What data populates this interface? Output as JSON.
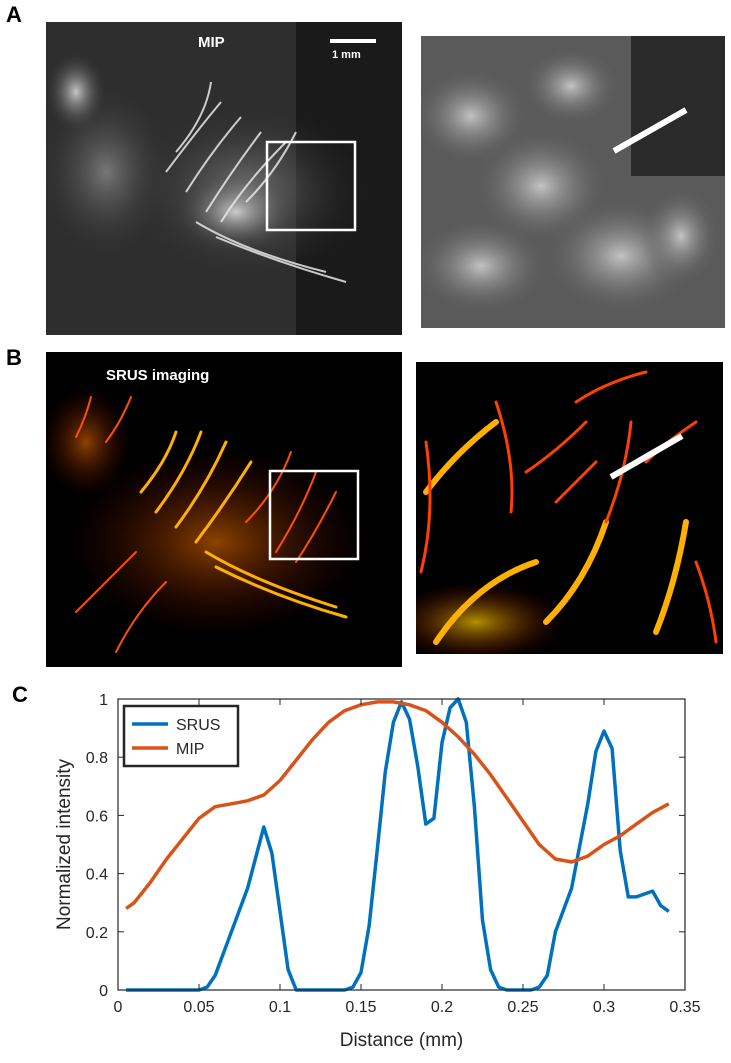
{
  "panels": {
    "a": {
      "letter": "A",
      "label": "MIP",
      "scale_bar": "1 mm"
    },
    "b": {
      "letter": "B",
      "label": "SRUS imaging"
    },
    "c": {
      "letter": "C"
    }
  },
  "chart_data": {
    "type": "line",
    "xlabel": "Distance (mm)",
    "ylabel": "Normalized intensity",
    "xlim": [
      0,
      0.35
    ],
    "ylim": [
      0,
      1
    ],
    "xticks": [
      "0",
      "0.05",
      "0.1",
      "0.15",
      "0.2",
      "0.25",
      "0.3",
      "0.35"
    ],
    "yticks": [
      "0",
      "0.2",
      "0.4",
      "0.6",
      "0.8",
      "1"
    ],
    "legend_position": "top-left",
    "series": [
      {
        "name": "SRUS",
        "color": "#0072BD",
        "x": [
          0.005,
          0.05,
          0.055,
          0.06,
          0.07,
          0.08,
          0.09,
          0.095,
          0.1,
          0.105,
          0.11,
          0.115,
          0.13,
          0.14,
          0.145,
          0.15,
          0.155,
          0.16,
          0.165,
          0.17,
          0.175,
          0.18,
          0.185,
          0.19,
          0.195,
          0.2,
          0.205,
          0.21,
          0.215,
          0.22,
          0.225,
          0.23,
          0.235,
          0.24,
          0.245,
          0.25,
          0.255,
          0.26,
          0.265,
          0.27,
          0.28,
          0.29,
          0.295,
          0.3,
          0.305,
          0.31,
          0.315,
          0.32,
          0.325,
          0.33,
          0.335,
          0.34
        ],
        "y": [
          0,
          0,
          0.01,
          0.05,
          0.2,
          0.35,
          0.56,
          0.47,
          0.27,
          0.07,
          0,
          0,
          0,
          0,
          0.01,
          0.06,
          0.22,
          0.48,
          0.75,
          0.92,
          0.99,
          0.93,
          0.77,
          0.57,
          0.59,
          0.85,
          0.97,
          1.0,
          0.92,
          0.63,
          0.24,
          0.07,
          0.01,
          0,
          0,
          0,
          0,
          0.01,
          0.05,
          0.2,
          0.35,
          0.64,
          0.82,
          0.89,
          0.83,
          0.48,
          0.32,
          0.32,
          0.33,
          0.34,
          0.29,
          0.27
        ]
      },
      {
        "name": "MIP",
        "color": "#D95319",
        "x": [
          0.005,
          0.01,
          0.02,
          0.03,
          0.04,
          0.05,
          0.06,
          0.07,
          0.08,
          0.09,
          0.1,
          0.11,
          0.12,
          0.13,
          0.14,
          0.15,
          0.16,
          0.17,
          0.18,
          0.19,
          0.2,
          0.21,
          0.22,
          0.23,
          0.24,
          0.25,
          0.26,
          0.27,
          0.28,
          0.29,
          0.3,
          0.31,
          0.32,
          0.33,
          0.34
        ],
        "y": [
          0.28,
          0.3,
          0.37,
          0.45,
          0.52,
          0.59,
          0.63,
          0.64,
          0.65,
          0.67,
          0.72,
          0.79,
          0.86,
          0.92,
          0.96,
          0.98,
          0.99,
          0.99,
          0.98,
          0.96,
          0.92,
          0.87,
          0.81,
          0.74,
          0.66,
          0.58,
          0.5,
          0.45,
          0.44,
          0.46,
          0.5,
          0.53,
          0.57,
          0.61,
          0.64
        ]
      }
    ]
  }
}
